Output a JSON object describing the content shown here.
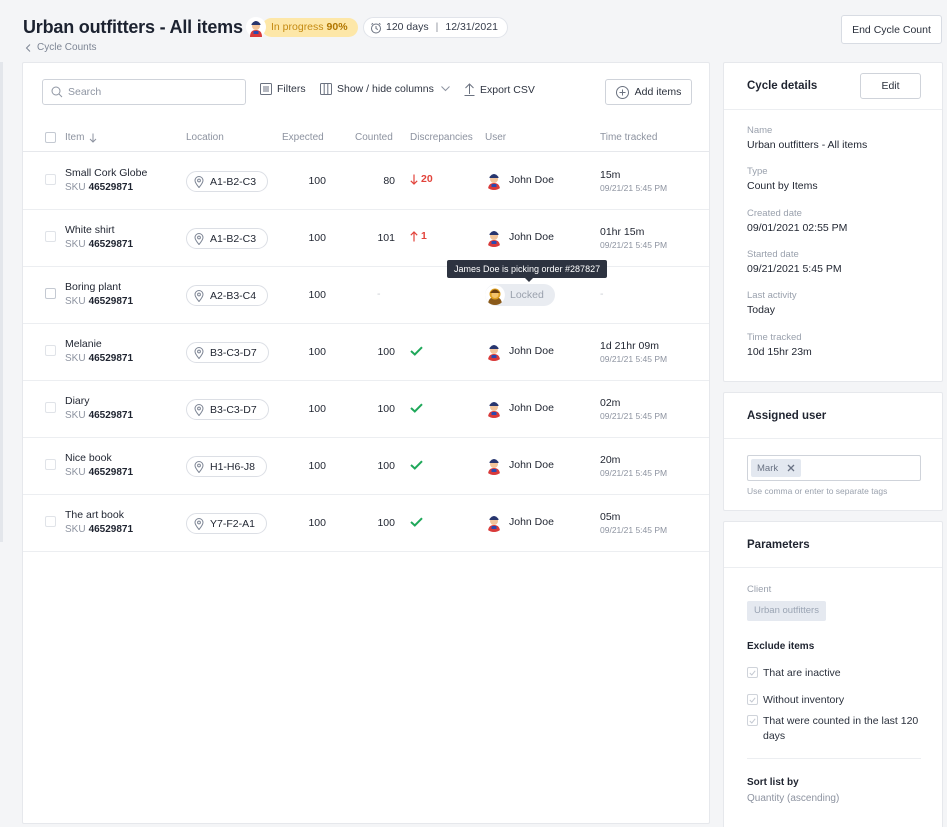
{
  "header": {
    "title": "Urban outfitters - All items",
    "progress_label": "In progress",
    "progress_value": "90%",
    "days": "120 days",
    "date": "12/31/2021",
    "breadcrumb": "Cycle Counts",
    "end_button": "End Cycle Count"
  },
  "toolbar": {
    "search_placeholder": "Search",
    "filters": "Filters",
    "columns": "Show / hide columns",
    "export": "Export CSV",
    "add_items": "Add items"
  },
  "columns": {
    "item": "Item",
    "location": "Location",
    "expected": "Expected",
    "counted": "Counted",
    "discrepancies": "Discrepancies",
    "user": "User",
    "time": "Time tracked"
  },
  "sku_label": "SKU",
  "rows": [
    {
      "name": "Small Cork Globe",
      "sku": "46529871",
      "location": "A1-B2-C3",
      "expected": "100",
      "counted": "80",
      "disc": "20",
      "user": "John Doe",
      "time": "15m",
      "time_sub": "09/21/21 5:45 PM"
    },
    {
      "name": "White shirt",
      "sku": "46529871",
      "location": "A1-B2-C3",
      "expected": "100",
      "counted": "101",
      "disc": "1",
      "user": "John Doe",
      "time": "01hr  15m",
      "time_sub": "09/21/21 5:45 PM"
    },
    {
      "name": "Boring plant",
      "sku": "46529871",
      "location": "A2-B3-C4",
      "expected": "100",
      "counted": "-",
      "locked": "Locked",
      "time": "-"
    },
    {
      "name": "Melanie",
      "sku": "46529871",
      "location": "B3-C3-D7",
      "expected": "100",
      "counted": "100",
      "user": "John Doe",
      "time": "1d  21hr  09m",
      "time_sub": "09/21/21 5:45 PM"
    },
    {
      "name": "Diary",
      "sku": "46529871",
      "location": "B3-C3-D7",
      "expected": "100",
      "counted": "100",
      "user": "John Doe",
      "time": "02m",
      "time_sub": "09/21/21 5:45 PM"
    },
    {
      "name": "Nice book",
      "sku": "46529871",
      "location": "H1-H6-J8",
      "expected": "100",
      "counted": "100",
      "user": "John Doe",
      "time": "20m",
      "time_sub": "09/21/21 5:45 PM"
    },
    {
      "name": "The art book",
      "sku": "46529871",
      "location": "Y7-F2-A1",
      "expected": "100",
      "counted": "100",
      "user": "John Doe",
      "time": "05m",
      "time_sub": "09/21/21 5:45 PM"
    }
  ],
  "tooltip": "James Doe is picking order #287827",
  "cycle_details": {
    "title": "Cycle details",
    "edit": "Edit",
    "fields": [
      {
        "label": "Name",
        "value": "Urban outfitters - All items"
      },
      {
        "label": "Type",
        "value": "Count by Items"
      },
      {
        "label": "Created date",
        "value": "09/01/2021 02:55 PM"
      },
      {
        "label": "Started date",
        "value": "09/21/2021 5:45 PM"
      },
      {
        "label": "Last activity",
        "value": "Today"
      },
      {
        "label": "Time tracked",
        "value": "10d  15hr  23m"
      }
    ]
  },
  "assigned": {
    "title": "Assigned user",
    "tag": "Mark",
    "helper": "Use comma or enter to separate tags"
  },
  "parameters": {
    "title": "Parameters",
    "client_label": "Client",
    "client": "Urban outfitters",
    "exclude_title": "Exclude items",
    "exclude": [
      "That are inactive",
      "Without inventory",
      "That were counted in the last 120 days"
    ],
    "sort_title": "Sort list by",
    "sort_value": "Quantity (ascending)"
  },
  "colors": {
    "accent_red": "#e2433b",
    "success_green": "#1fa85a",
    "progress_yellow": "#fde7a8"
  },
  "icons": [
    "clock-icon",
    "chevron-left-icon",
    "search-icon",
    "filter-icon",
    "columns-icon",
    "chevron-down-icon",
    "upload-icon",
    "plus-circle-icon",
    "sort-down-icon",
    "location-pin-icon",
    "arrow-down-icon",
    "arrow-up-icon",
    "check-icon",
    "close-icon"
  ]
}
